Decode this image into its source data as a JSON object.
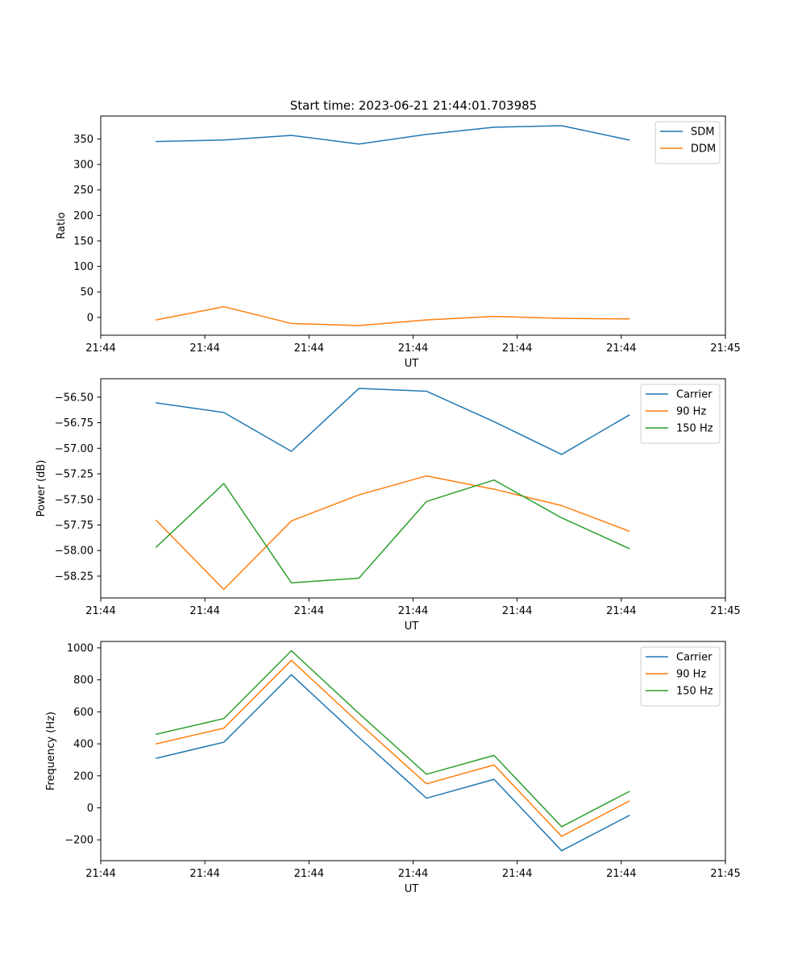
{
  "figure": {
    "title": "Start time: 2023-06-21 21:44:01.703985"
  },
  "colors": {
    "blue": "#1f77b4",
    "orange": "#ff7f0e",
    "green": "#2ca02c",
    "axes": "#000000",
    "background": "#ffffff"
  },
  "chart_data": [
    {
      "type": "line",
      "xlabel": "UT",
      "ylabel": "Ratio",
      "x": [
        1.2,
        2.66,
        4.12,
        5.58,
        7.04,
        8.5,
        9.96,
        11.42
      ],
      "xlim": [
        0,
        13.5
      ],
      "xticks": [
        0.0,
        2.25,
        4.5,
        6.75,
        9.0,
        11.25,
        13.5
      ],
      "xtick_labels": [
        "21:44",
        "21:44",
        "21:44",
        "21:44",
        "21:44",
        "21:44",
        "21:45"
      ],
      "ylim": [
        -35,
        395
      ],
      "yticks": [
        0,
        50,
        100,
        150,
        200,
        250,
        300,
        350
      ],
      "ytick_labels": [
        "0",
        "50",
        "100",
        "150",
        "200",
        "250",
        "300",
        "350"
      ],
      "legend_position": "top-right",
      "grid": false,
      "series": [
        {
          "name": "SDM",
          "color": "#1f77b4",
          "values": [
            345,
            348,
            357,
            340,
            359,
            373,
            376,
            348
          ]
        },
        {
          "name": "DDM",
          "color": "#ff7f0e",
          "values": [
            -5,
            21,
            -12,
            -16,
            -5,
            2,
            -2,
            -3
          ]
        }
      ]
    },
    {
      "type": "line",
      "xlabel": "UT",
      "ylabel": "Power (dB)",
      "x": [
        1.2,
        2.66,
        4.12,
        5.58,
        7.04,
        8.5,
        9.96,
        11.42
      ],
      "xlim": [
        0,
        13.5
      ],
      "xticks": [
        0.0,
        2.25,
        4.5,
        6.75,
        9.0,
        11.25,
        13.5
      ],
      "xtick_labels": [
        "21:44",
        "21:44",
        "21:44",
        "21:44",
        "21:44",
        "21:44",
        "21:45"
      ],
      "ylim": [
        -58.463,
        -56.32
      ],
      "yticks": [
        -56.5,
        -56.75,
        -57.0,
        -57.25,
        -57.5,
        -57.75,
        -58.0,
        -58.25
      ],
      "ytick_labels": [
        "−56.50",
        "−56.75",
        "−57.00",
        "−57.25",
        "−57.50",
        "−57.75",
        "−58.00",
        "−58.25"
      ],
      "legend_position": "top-right",
      "grid": false,
      "series": [
        {
          "name": "Carrier",
          "color": "#1f77b4",
          "values": [
            -56.556,
            -56.65,
            -57.03,
            -56.415,
            -56.442,
            -56.74,
            -57.06,
            -56.675
          ]
        },
        {
          "name": "90 Hz",
          "color": "#ff7f0e",
          "values": [
            -57.705,
            -58.38,
            -57.71,
            -57.455,
            -57.27,
            -57.4,
            -57.56,
            -57.81
          ]
        },
        {
          "name": "150 Hz",
          "color": "#2ca02c",
          "values": [
            -57.965,
            -57.345,
            -58.315,
            -58.27,
            -57.52,
            -57.31,
            -57.68,
            -57.98
          ]
        }
      ]
    },
    {
      "type": "line",
      "xlabel": "UT",
      "ylabel": "Frequency (Hz)",
      "x": [
        1.2,
        2.66,
        4.12,
        5.58,
        7.04,
        8.5,
        9.96,
        11.42
      ],
      "xlim": [
        0,
        13.5
      ],
      "xticks": [
        0.0,
        2.25,
        4.5,
        6.75,
        9.0,
        11.25,
        13.5
      ],
      "xtick_labels": [
        "21:44",
        "21:44",
        "21:44",
        "21:44",
        "21:44",
        "21:44",
        "21:45"
      ],
      "ylim": [
        -330,
        1040
      ],
      "yticks": [
        -200,
        0,
        200,
        400,
        600,
        800,
        1000
      ],
      "ytick_labels": [
        "−200",
        "0",
        "200",
        "400",
        "600",
        "800",
        "1000"
      ],
      "legend_position": "top-right",
      "grid": false,
      "series": [
        {
          "name": "Carrier",
          "color": "#1f77b4",
          "values": [
            310,
            410,
            832,
            440,
            60,
            178,
            -268,
            -48
          ]
        },
        {
          "name": "90 Hz",
          "color": "#ff7f0e",
          "values": [
            400,
            498,
            922,
            530,
            150,
            268,
            -178,
            42
          ]
        },
        {
          "name": "150 Hz",
          "color": "#2ca02c",
          "values": [
            460,
            558,
            982,
            590,
            210,
            328,
            -118,
            102
          ]
        }
      ]
    }
  ]
}
